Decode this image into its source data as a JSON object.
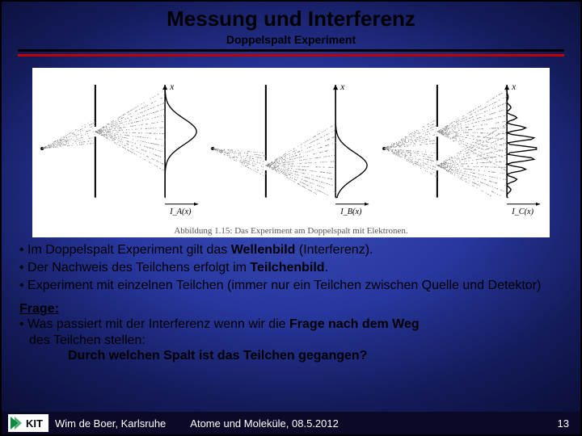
{
  "title": "Messung und Interferenz",
  "subtitle": "Doppelspalt Experiment",
  "caption": "Abbildung 1.15: Das Experiment am Doppelspalt mit Elektronen.",
  "bullets": [
    {
      "pre": "Im Doppelspalt Experiment gilt das ",
      "bold": "Wellenbild  ",
      "post": "(Interferenz)."
    },
    {
      "pre": "Der Nachweis des Teilchens erfolgt im ",
      "bold": "Teilchenbild",
      "post": "."
    },
    {
      "pre": "Experiment mit einzelnen Teilchen (immer nur ein Teilchen zwischen Quelle und Detektor)",
      "bold": "",
      "post": ""
    }
  ],
  "frage": {
    "label": "Frage:",
    "line1_pre": "Was passiert mit der Interferenz wenn wir die ",
    "line1_bold": "Frage nach dem Weg",
    "line2": "des Teilchen stellen:",
    "final": "Durch welchen Spalt ist das Teilchen gegangen?"
  },
  "footer": {
    "author": "Wim de Boer, Karlsruhe",
    "lecture": "Atome und Moleküle,  08.5.2012",
    "page": "13"
  },
  "figure": {
    "panels": [
      {
        "slit_open": "top",
        "curve": "single_top"
      },
      {
        "slit_open": "bottom",
        "curve": "single_bottom"
      },
      {
        "slit_open": "both",
        "curve": "interference"
      }
    ],
    "colors": {
      "axis": "#000000",
      "dots": "#808080",
      "bg": "#ffffff"
    }
  }
}
